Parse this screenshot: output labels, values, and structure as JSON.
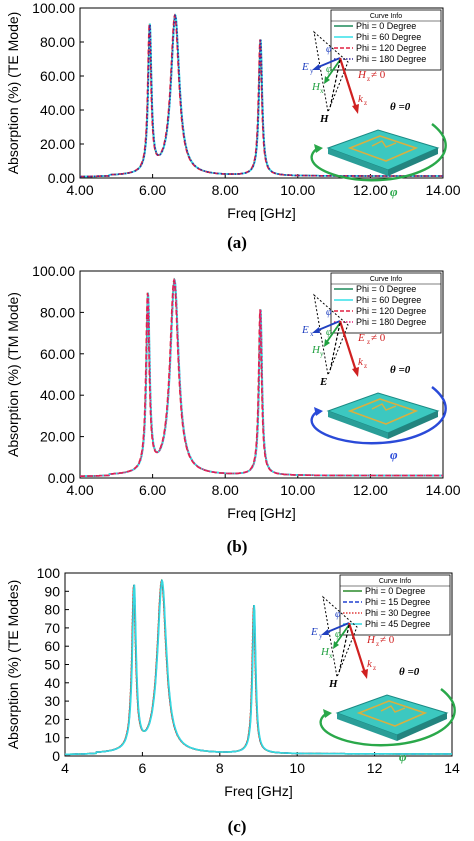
{
  "chart_data": [
    {
      "type": "line",
      "panel_label": "(a)",
      "xlabel": "Freq [GHz]",
      "ylabel": "Absorption (%) (TE Mode)",
      "xlim": [
        4,
        14
      ],
      "ylim": [
        0,
        100
      ],
      "xticks": [
        "4.00",
        "6.00",
        "8.00",
        "10.00",
        "12.00",
        "14.00"
      ],
      "yticks": [
        "0.00",
        "20.00",
        "40.00",
        "60.00",
        "80.00",
        "100.00"
      ],
      "legend_title": "Curve Info",
      "legend_position": "top-right",
      "grid": false,
      "peaks": [
        {
          "f": 5.92,
          "y": 86,
          "w": 0.055
        },
        {
          "f": 6.62,
          "y": 94,
          "w": 0.14
        },
        {
          "f": 8.97,
          "y": 80,
          "w": 0.055
        }
      ],
      "series": [
        {
          "name": "Phi = 0 Degree",
          "color": "#1b8a5a",
          "style": "solid",
          "peak_shift": 0.0
        },
        {
          "name": "Phi = 60 Degree",
          "color": "#35e0e8",
          "style": "solid",
          "peak_shift": 0.01
        },
        {
          "name": "Phi = 120 Degree",
          "color": "#e02040",
          "style": "dashed",
          "peak_shift": -0.01
        },
        {
          "name": "Phi = 180 Degree",
          "color": "#3a2aa0",
          "style": "dotted",
          "peak_shift": 0.005
        }
      ],
      "inset": {
        "field_e": "E",
        "field_e_sub": "y",
        "field_h": "H",
        "field_h_sub": "x",
        "field_hz": "H",
        "field_hz_sub": "z",
        "hz_suffix": " ≠ 0",
        "vec_h": "H",
        "wavevector": "k",
        "wavevector_sub": "z",
        "phi": "φ",
        "theta_label": "θ =0",
        "rotation_color": "#2aa84a"
      }
    },
    {
      "type": "line",
      "panel_label": "(b)",
      "xlabel": "Freq [GHz]",
      "ylabel": "Absorption (%) (TM Mode)",
      "xlim": [
        4,
        14
      ],
      "ylim": [
        0,
        100
      ],
      "xticks": [
        "4.00",
        "6.00",
        "8.00",
        "10.00",
        "12.00",
        "14.00"
      ],
      "yticks": [
        "0.00",
        "20.00",
        "40.00",
        "60.00",
        "80.00",
        "100.00"
      ],
      "legend_title": "Curve Info",
      "legend_position": "top-right",
      "grid": false,
      "peaks": [
        {
          "f": 5.87,
          "y": 85,
          "w": 0.055
        },
        {
          "f": 6.6,
          "y": 94,
          "w": 0.14
        },
        {
          "f": 8.97,
          "y": 80,
          "w": 0.05
        }
      ],
      "series": [
        {
          "name": "Phi = 0 Degree",
          "color": "#1b8a5a",
          "style": "solid",
          "peak_shift": 0.0
        },
        {
          "name": "Phi = 60 Degree",
          "color": "#35e0e8",
          "style": "solid",
          "peak_shift": 0.01
        },
        {
          "name": "Phi = 120 Degree",
          "color": "#e02040",
          "style": "dashed",
          "peak_shift": -0.01
        },
        {
          "name": "Phi = 180 Degree",
          "color": "#e0207a",
          "style": "dotted",
          "peak_shift": 0.005
        }
      ],
      "inset": {
        "field_e": "E",
        "field_e_sub": "x",
        "field_h": "H",
        "field_h_sub": "y",
        "field_hz": "E",
        "field_hz_sub": "z",
        "hz_suffix": " ≠ 0",
        "vec_h": "E",
        "wavevector": "k",
        "wavevector_sub": "z",
        "phi": "φ",
        "theta_label": "θ =0",
        "rotation_color": "#2a4ad8"
      }
    },
    {
      "type": "line",
      "panel_label": "(c)",
      "xlabel": "Freq [GHz]",
      "ylabel": "Absorption (%) (TE Modes)",
      "xlim": [
        4,
        14
      ],
      "ylim": [
        0,
        100
      ],
      "xticks": [
        "4",
        "6",
        "8",
        "10",
        "12",
        "14"
      ],
      "yticks": [
        "0",
        "10",
        "20",
        "30",
        "40",
        "50",
        "60",
        "70",
        "80",
        "90",
        "100"
      ],
      "legend_title": "Curve Info",
      "legend_position": "top-right",
      "grid": false,
      "peaks": [
        {
          "f": 5.78,
          "y": 89,
          "w": 0.06
        },
        {
          "f": 6.5,
          "y": 94,
          "w": 0.14
        },
        {
          "f": 8.88,
          "y": 81,
          "w": 0.05
        }
      ],
      "series": [
        {
          "name": "Phi = 0 Degree",
          "color": "#2a8a2a",
          "style": "solid",
          "peak_shift": 0.0
        },
        {
          "name": "Phi = 15 Degree",
          "color": "#2040d0",
          "style": "dashed",
          "peak_shift": 0.005
        },
        {
          "name": "Phi = 30 Degree",
          "color": "#e03a3a",
          "style": "dotted",
          "peak_shift": -0.005
        },
        {
          "name": "Phi = 45 Degree",
          "color": "#35d8e0",
          "style": "solid",
          "peak_shift": 0.01
        }
      ],
      "inset": {
        "field_e": "E",
        "field_e_sub": "y",
        "field_h": "H",
        "field_h_sub": "x",
        "field_hz": "H",
        "field_hz_sub": "z",
        "hz_suffix": " ≠ 0",
        "vec_h": "H",
        "wavevector": "k",
        "wavevector_sub": "z",
        "phi": "φ",
        "theta_label": "θ =0",
        "rotation_color": "#2aa84a"
      }
    }
  ]
}
